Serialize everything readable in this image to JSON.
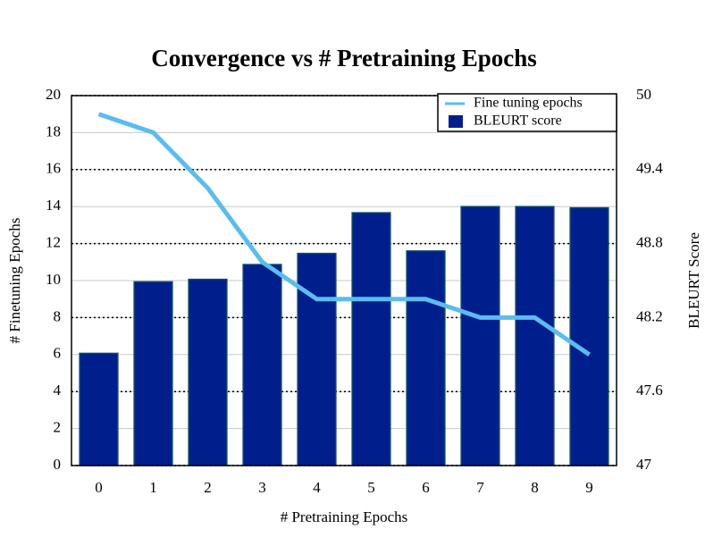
{
  "chart_data": {
    "type": "bar_line",
    "title": "Convergence vs # Pretraining Epochs",
    "x_label": "# Pretraining Epochs",
    "y_label": "# Finetuning Epochs",
    "y2_label": "BLEURT Score",
    "categories": [
      "0",
      "1",
      "2",
      "3",
      "4",
      "5",
      "6",
      "7",
      "8",
      "9"
    ],
    "series": [
      {
        "name": "Fine tuning epochs",
        "type": "line",
        "color": "#5bbcf0",
        "axis": "y",
        "values": [
          19,
          18,
          15,
          11,
          9,
          9,
          9,
          8,
          8,
          6
        ]
      },
      {
        "name": "BLEURT score",
        "type": "bar",
        "color": "#001f8c",
        "axis": "y2",
        "values": [
          47.91,
          48.49,
          48.51,
          48.63,
          48.72,
          49.05,
          48.74,
          49.1,
          49.1,
          49.09
        ]
      }
    ],
    "ylim": [
      0,
      20
    ],
    "yticks": [
      0,
      2,
      4,
      6,
      8,
      10,
      12,
      14,
      16,
      18,
      20
    ],
    "y2lim": [
      47,
      50
    ],
    "y2ticks": [
      47,
      47.6,
      48.2,
      48.8,
      49.4,
      50
    ],
    "grid": true,
    "legend": "upper right"
  }
}
